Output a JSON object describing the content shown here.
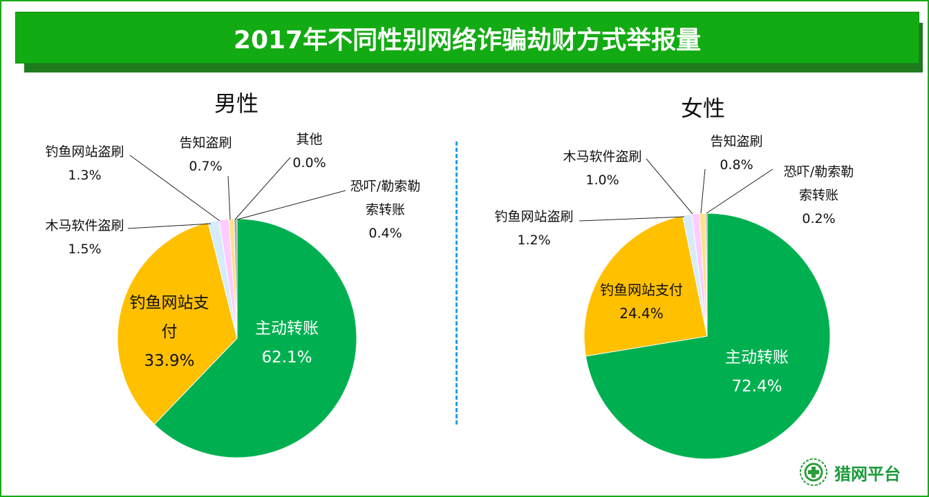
{
  "title": "2017年不同性别网络诈骗劫财方式举报量",
  "logo_text": "猎网平台",
  "chart_data": [
    {
      "type": "pie",
      "title": "男性",
      "slices": [
        {
          "label": "主动转账",
          "value": 62.1,
          "color": "#00b050"
        },
        {
          "label": "钓鱼网站支付",
          "value": 33.9,
          "color": "#ffc000"
        },
        {
          "label": "木马软件盗刷",
          "value": 1.5,
          "color": "#d6ecfc"
        },
        {
          "label": "钓鱼网站盗刷",
          "value": 1.3,
          "color": "#ffccff"
        },
        {
          "label": "告知盗刷",
          "value": 0.7,
          "color": "#ffe08a"
        },
        {
          "label": "其他",
          "value": 0.0,
          "color": "#7f7f7f"
        },
        {
          "label": "恐吓/勒索勒索转账",
          "value": 0.4,
          "color": "#a6a6a6"
        }
      ],
      "value_labels": [
        "62.1%",
        "33.9%",
        "1.5%",
        "1.3%",
        "0.7%",
        "0.0%",
        "0.4%"
      ]
    },
    {
      "type": "pie",
      "title": "女性",
      "slices": [
        {
          "label": "主动转账",
          "value": 72.4,
          "color": "#00b050"
        },
        {
          "label": "钓鱼网站支付",
          "value": 24.4,
          "color": "#ffc000"
        },
        {
          "label": "钓鱼网站盗刷",
          "value": 1.2,
          "color": "#d6ecfc"
        },
        {
          "label": "木马软件盗刷",
          "value": 1.0,
          "color": "#ffccff"
        },
        {
          "label": "告知盗刷",
          "value": 0.8,
          "color": "#ffe08a"
        },
        {
          "label": "恐吓/勒索勒索转账",
          "value": 0.2,
          "color": "#a6a6a6"
        }
      ],
      "value_labels": [
        "72.4%",
        "24.4%",
        "1.2%",
        "1.0%",
        "0.8%",
        "0.2%"
      ]
    }
  ],
  "labels": {
    "m_main": "主动转账",
    "m_phish_pay_1": "钓鱼网站支",
    "m_phish_pay_2": "付",
    "m_trojan": "木马软件盗刷",
    "m_phish_steal": "钓鱼网站盗刷",
    "m_inform": "告知盗刷",
    "m_other": "其他",
    "m_threat_1": "恐吓/勒索勒",
    "m_threat_2": "索转账",
    "f_main": "主动转账",
    "f_phish_pay": "钓鱼网站支付",
    "f_phish_steal": "钓鱼网站盗刷",
    "f_trojan": "木马软件盗刷",
    "f_inform": "告知盗刷",
    "f_threat_1": "恐吓/勒索勒",
    "f_threat_2": "索转账"
  }
}
